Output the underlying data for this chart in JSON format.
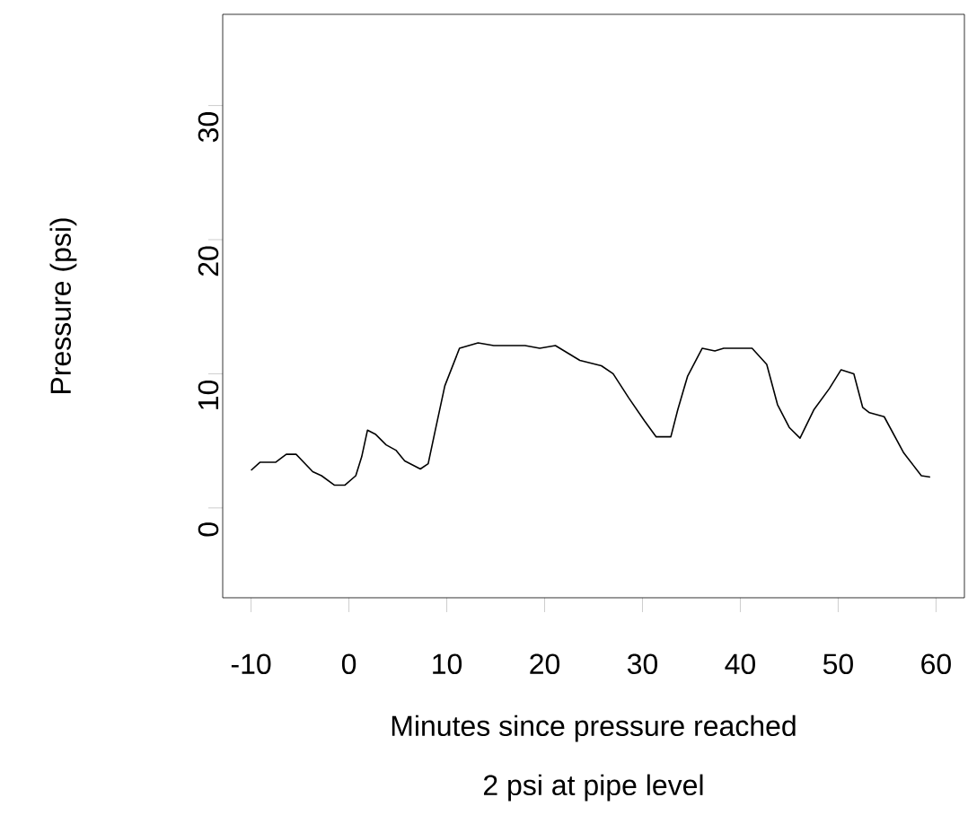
{
  "chart_data": {
    "type": "line",
    "xlabel": "Minutes since pressure reached\n2 psi at pipe level",
    "ylabel": "Pressure (psi)",
    "xlim": [
      -12.9,
      62.9
    ],
    "ylim": [
      -6.7,
      36.8
    ],
    "xticks": [
      -10,
      0,
      10,
      20,
      30,
      40,
      50,
      60
    ],
    "yticks": [
      0,
      10,
      20,
      30
    ],
    "grid": false,
    "marker": "none",
    "line_style": "solid",
    "series": [
      {
        "color": "#000000",
        "x": [
          -10,
          -9.1,
          -7.5,
          -6.4,
          -5.4,
          -3.7,
          -2.8,
          -1.5,
          -0.4,
          0.7,
          1.3,
          1.9,
          2.7,
          3.8,
          4.8,
          5.7,
          7.3,
          8.1,
          8.8,
          9.8,
          11.3,
          13.2,
          14.8,
          18.0,
          19.5,
          21.1,
          23.6,
          25.8,
          27.0,
          28.6,
          30.2,
          31.4,
          32.9,
          33.6,
          34.6,
          36.1,
          37.4,
          38.3,
          41.2,
          42.7,
          43.8,
          45.0,
          46.1,
          47.5,
          49.1,
          50.3,
          51.6,
          52.5,
          53.2,
          54.7,
          56.7,
          58.5,
          59.4
        ],
        "values": [
          2.8,
          3.4,
          3.4,
          4.0,
          4.0,
          2.7,
          2.4,
          1.7,
          1.7,
          2.4,
          3.8,
          5.8,
          5.5,
          4.7,
          4.3,
          3.5,
          2.9,
          3.3,
          5.7,
          9.1,
          11.9,
          12.3,
          12.1,
          12.1,
          11.9,
          12.1,
          11.0,
          10.6,
          10.0,
          8.2,
          6.5,
          5.3,
          5.3,
          7.3,
          9.8,
          11.9,
          11.7,
          11.9,
          11.9,
          10.7,
          7.7,
          6.0,
          5.2,
          7.3,
          8.9,
          10.3,
          10.0,
          7.5,
          7.1,
          6.8,
          4.1,
          2.4,
          2.3
        ]
      }
    ]
  }
}
